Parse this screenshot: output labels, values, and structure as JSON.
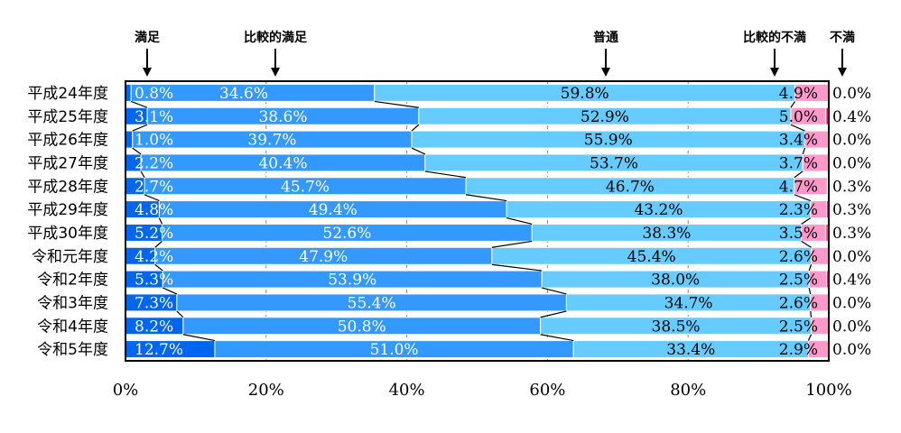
{
  "chart_data": {
    "type": "bar",
    "stacked": true,
    "orientation": "horizontal",
    "percent_stacked": true,
    "categories": [
      "平成24年度",
      "平成25年度",
      "平成26年度",
      "平成27年度",
      "平成28年度",
      "平成29年度",
      "平成30年度",
      "令和元年度",
      "令和2年度",
      "令和3年度",
      "令和4年度",
      "令和5年度"
    ],
    "series": [
      {
        "name": "満足",
        "color": "#0066ee",
        "values": [
          0.8,
          3.1,
          1.0,
          2.2,
          2.7,
          4.8,
          5.2,
          4.2,
          5.3,
          7.3,
          8.2,
          12.7
        ]
      },
      {
        "name": "比較的満足",
        "color": "#3399ff",
        "values": [
          34.6,
          38.6,
          39.7,
          40.4,
          45.7,
          49.4,
          52.6,
          47.9,
          53.9,
          55.4,
          50.8,
          51.0
        ]
      },
      {
        "name": "普通",
        "color": "#66ccff",
        "values": [
          59.8,
          52.9,
          55.9,
          53.7,
          46.7,
          43.2,
          38.3,
          45.4,
          38.0,
          34.7,
          38.5,
          33.4
        ]
      },
      {
        "name": "比較的不満",
        "color": "#ff99cc",
        "values": [
          4.9,
          5.0,
          3.4,
          3.7,
          4.7,
          2.3,
          3.5,
          2.6,
          2.5,
          2.6,
          2.5,
          2.9
        ]
      },
      {
        "name": "不満",
        "color": "#ee0066",
        "values": [
          0.0,
          0.4,
          0.0,
          0.0,
          0.3,
          0.3,
          0.3,
          0.0,
          0.4,
          0.0,
          0.0,
          0.0
        ]
      }
    ],
    "data_labels": [
      [
        "0.8%",
        "34.6%",
        "59.8%",
        "4.9%",
        "0.0%"
      ],
      [
        "3.1%",
        "38.6%",
        "52.9%",
        "5.0%",
        "0.4%"
      ],
      [
        "1.0%",
        "39.7%",
        "55.9%",
        "3.4%",
        "0.0%"
      ],
      [
        "2.2%",
        "40.4%",
        "53.7%",
        "3.7%",
        "0.0%"
      ],
      [
        "2.7%",
        "45.7%",
        "46.7%",
        "4.7%",
        "0.3%"
      ],
      [
        "4.8%",
        "49.4%",
        "43.2%",
        "2.3%",
        "0.3%"
      ],
      [
        "5.2%",
        "52.6%",
        "38.3%",
        "3.5%",
        "0.3%"
      ],
      [
        "4.2%",
        "47.9%",
        "45.4%",
        "2.6%",
        "0.0%"
      ],
      [
        "5.3%",
        "53.9%",
        "38.0%",
        "2.5%",
        "0.4%"
      ],
      [
        "7.3%",
        "55.4%",
        "34.7%",
        "2.6%",
        "0.0%"
      ],
      [
        "8.2%",
        "50.8%",
        "38.5%",
        "2.5%",
        "0.0%"
      ],
      [
        "12.7%",
        "51.0%",
        "33.4%",
        "2.9%",
        "0.0%"
      ]
    ],
    "x_ticks": [
      "0%",
      "20%",
      "40%",
      "60%",
      "80%",
      "100%"
    ],
    "xlim": [
      0,
      100
    ],
    "grid": "vertical-dashed",
    "legend": "top-arrows",
    "title": "",
    "xlabel": "",
    "ylabel": ""
  }
}
